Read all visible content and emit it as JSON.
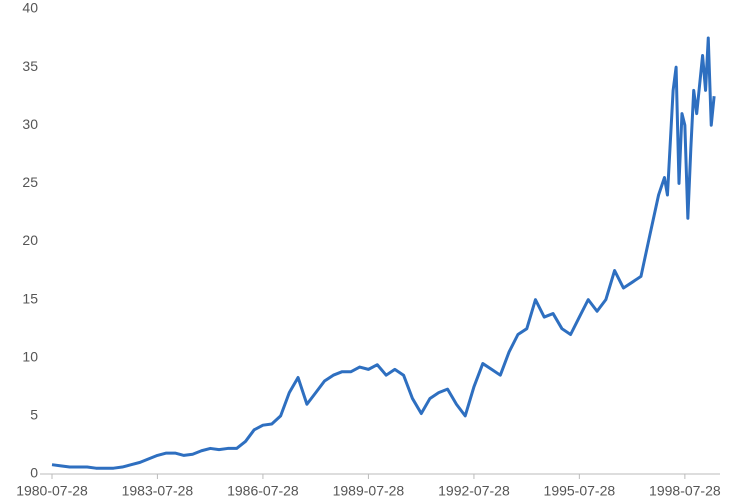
{
  "chart_data": {
    "type": "line",
    "x": [
      "1980-07-28",
      "1980-10-28",
      "1981-01-28",
      "1981-04-28",
      "1981-07-28",
      "1981-10-28",
      "1982-01-28",
      "1982-04-28",
      "1982-07-28",
      "1982-10-28",
      "1983-01-28",
      "1983-04-28",
      "1983-07-28",
      "1983-10-28",
      "1984-01-28",
      "1984-04-28",
      "1984-07-28",
      "1984-10-28",
      "1985-01-28",
      "1985-04-28",
      "1985-07-28",
      "1985-10-28",
      "1986-01-28",
      "1986-04-28",
      "1986-07-28",
      "1986-10-28",
      "1987-01-28",
      "1987-04-28",
      "1987-07-28",
      "1987-10-28",
      "1988-01-28",
      "1988-04-28",
      "1988-07-28",
      "1988-10-28",
      "1989-01-28",
      "1989-04-28",
      "1989-07-28",
      "1989-10-28",
      "1990-01-28",
      "1990-04-28",
      "1990-07-28",
      "1990-10-28",
      "1991-01-28",
      "1991-04-28",
      "1991-07-28",
      "1991-10-28",
      "1992-01-28",
      "1992-04-28",
      "1992-07-28",
      "1992-10-28",
      "1993-01-28",
      "1993-04-28",
      "1993-07-28",
      "1993-10-28",
      "1994-01-28",
      "1994-04-28",
      "1994-07-28",
      "1994-10-28",
      "1995-01-28",
      "1995-04-28",
      "1995-07-28",
      "1995-10-28",
      "1996-01-28",
      "1996-04-28",
      "1996-07-28",
      "1996-10-28",
      "1997-01-28",
      "1997-04-28",
      "1997-07-28",
      "1997-10-28",
      "1997-12-28",
      "1998-01-28",
      "1998-03-28",
      "1998-04-28",
      "1998-05-28",
      "1998-06-28",
      "1998-07-28",
      "1998-08-28",
      "1998-09-28",
      "1998-10-28",
      "1998-11-28",
      "1999-01-28",
      "1999-02-28",
      "1999-03-28",
      "1999-04-28",
      "1999-05-28"
    ],
    "series": [
      {
        "color": "#2e6fc0",
        "values": [
          0.8,
          0.7,
          0.6,
          0.6,
          0.6,
          0.5,
          0.5,
          0.5,
          0.6,
          0.8,
          1.0,
          1.3,
          1.6,
          1.8,
          1.8,
          1.6,
          1.7,
          2.0,
          2.2,
          2.1,
          2.2,
          2.2,
          2.8,
          3.8,
          4.2,
          4.3,
          5.0,
          7.0,
          8.3,
          6.0,
          7.0,
          8.0,
          8.5,
          8.8,
          8.8,
          9.2,
          9.0,
          9.4,
          8.5,
          9.0,
          8.5,
          6.5,
          5.2,
          6.5,
          7.0,
          7.3,
          6.0,
          5.0,
          7.5,
          9.5,
          9.0,
          8.5,
          10.5,
          12.0,
          12.5,
          15.0,
          13.5,
          13.8,
          12.5,
          12.0,
          13.5,
          15.0,
          14.0,
          15.0,
          17.5,
          16.0,
          16.5,
          17.0,
          20.5,
          24.0,
          25.5,
          24.0,
          33.0,
          35.0,
          25.0,
          31.0,
          30.0,
          22.0,
          28.0,
          33.0,
          31.0,
          36.0,
          33.0,
          37.5,
          30.0,
          32.5
        ]
      }
    ],
    "xlim": [
      "1980-07-28",
      "1999-07-28"
    ],
    "xticks": [
      "1980-07-28",
      "1983-07-28",
      "1986-07-28",
      "1989-07-28",
      "1992-07-28",
      "1995-07-28",
      "1998-07-28"
    ],
    "ylim": [
      0,
      40
    ],
    "yticks": [
      0,
      5,
      10,
      15,
      20,
      25,
      30,
      35,
      40
    ]
  }
}
